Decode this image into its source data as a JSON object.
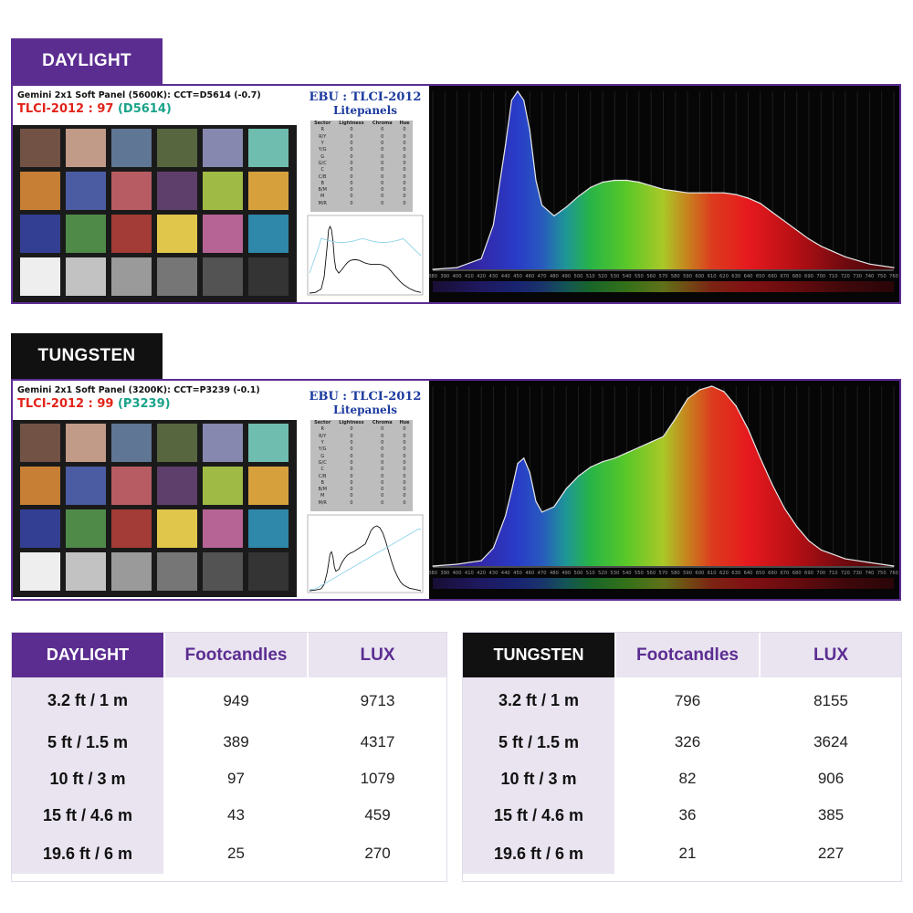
{
  "sections": [
    {
      "key": "daylight",
      "tab_label": "DAYLIGHT",
      "info_line1": "Gemini 2x1 Soft Panel (5600K): CCT=D5614 (-0.7)",
      "tlci_label": "TLCI-2012 : 97",
      "tlci_code": "(D5614)",
      "ebu_title": "EBU : TLCI-2012",
      "ebu_subtitle": "Litepanels",
      "ebu_header": [
        "Sector",
        "Lightness",
        "Chroma",
        "Hue"
      ],
      "ebu_rows": [
        [
          "R",
          "0",
          "0",
          "0"
        ],
        [
          "R/Y",
          "0",
          "0",
          "0"
        ],
        [
          "Y",
          "0",
          "0",
          "0"
        ],
        [
          "Y/G",
          "0",
          "0",
          "0"
        ],
        [
          "G",
          "0",
          "0",
          "0"
        ],
        [
          "G/C",
          "0",
          "0",
          "0"
        ],
        [
          "C",
          "0",
          "0",
          "0"
        ],
        [
          "C/B",
          "0",
          "0",
          "0"
        ],
        [
          "B",
          "0",
          "0",
          "0"
        ],
        [
          "B/M",
          "0",
          "0",
          "0"
        ],
        [
          "M",
          "0",
          "0",
          "0"
        ],
        [
          "M/R",
          "0",
          "0",
          "0"
        ]
      ],
      "colors": {
        "tab": "#5c2d91"
      }
    },
    {
      "key": "tungsten",
      "tab_label": "TUNGSTEN",
      "info_line1": "Gemini 2x1 Soft Panel (3200K): CCT=P3239 (-0.1)",
      "tlci_label": "TLCI-2012 : 99",
      "tlci_code": "(P3239)",
      "ebu_title": "EBU : TLCI-2012",
      "ebu_subtitle": "Litepanels",
      "ebu_header": [
        "Sector",
        "Lightness",
        "Chroma",
        "Hue"
      ],
      "ebu_rows": [
        [
          "R",
          "0",
          "0",
          "0"
        ],
        [
          "R/Y",
          "0",
          "0",
          "0"
        ],
        [
          "Y",
          "0",
          "0",
          "0"
        ],
        [
          "Y/G",
          "0",
          "0",
          "0"
        ],
        [
          "G",
          "0",
          "0",
          "0"
        ],
        [
          "G/C",
          "0",
          "0",
          "0"
        ],
        [
          "C",
          "0",
          "0",
          "0"
        ],
        [
          "C/B",
          "0",
          "0",
          "0"
        ],
        [
          "B",
          "0",
          "0",
          "0"
        ],
        [
          "B/M",
          "0",
          "0",
          "0"
        ],
        [
          "M",
          "0",
          "0",
          "0"
        ],
        [
          "M/R",
          "0",
          "0",
          "0"
        ]
      ],
      "colors": {
        "tab": "#111111"
      }
    }
  ],
  "checker_colors": [
    [
      "#735246",
      "#c29a88",
      "#5f7695",
      "#57663f",
      "#8688b0",
      "#6fbdaf"
    ],
    [
      "#c77f35",
      "#4c5ca3",
      "#b75c63",
      "#5e3f6b",
      "#9fba45",
      "#d6a13d"
    ],
    [
      "#323f93",
      "#4f8a49",
      "#a33b36",
      "#e0c64a",
      "#b56495",
      "#2f87aa"
    ],
    [
      "#eeeeee",
      "#c2c2c2",
      "#9a9a9a",
      "#767676",
      "#535353",
      "#343434"
    ]
  ],
  "chart_data": [
    {
      "type": "area",
      "panel": "daylight",
      "x_unit": "nm",
      "xlim": [
        380,
        760
      ],
      "x_ticks": [
        380,
        390,
        400,
        410,
        420,
        430,
        440,
        450,
        460,
        470,
        480,
        490,
        500,
        510,
        520,
        530,
        540,
        550,
        560,
        570,
        580,
        590,
        600,
        610,
        620,
        630,
        640,
        650,
        660,
        670,
        680,
        690,
        700,
        710,
        720,
        730,
        740,
        750,
        760
      ],
      "x": [
        380,
        400,
        420,
        430,
        440,
        445,
        450,
        455,
        460,
        465,
        470,
        480,
        490,
        500,
        510,
        520,
        530,
        540,
        550,
        560,
        570,
        580,
        590,
        600,
        610,
        620,
        630,
        640,
        650,
        660,
        670,
        680,
        690,
        700,
        720,
        740,
        760
      ],
      "y": [
        0.0,
        0.01,
        0.06,
        0.25,
        0.7,
        0.95,
        1.0,
        0.95,
        0.78,
        0.5,
        0.36,
        0.3,
        0.35,
        0.41,
        0.46,
        0.49,
        0.5,
        0.5,
        0.49,
        0.47,
        0.45,
        0.44,
        0.43,
        0.43,
        0.43,
        0.43,
        0.42,
        0.4,
        0.37,
        0.32,
        0.27,
        0.22,
        0.17,
        0.13,
        0.07,
        0.03,
        0.01
      ],
      "ylim": [
        0,
        1
      ]
    },
    {
      "type": "area",
      "panel": "tungsten",
      "x_unit": "nm",
      "xlim": [
        380,
        760
      ],
      "x_ticks": [
        380,
        390,
        400,
        410,
        420,
        430,
        440,
        450,
        460,
        470,
        480,
        490,
        500,
        510,
        520,
        530,
        540,
        550,
        560,
        570,
        580,
        590,
        600,
        610,
        620,
        630,
        640,
        650,
        660,
        670,
        680,
        690,
        700,
        710,
        720,
        730,
        740,
        750,
        760
      ],
      "x": [
        380,
        400,
        420,
        430,
        440,
        445,
        450,
        455,
        460,
        465,
        470,
        480,
        490,
        500,
        510,
        520,
        530,
        540,
        550,
        560,
        570,
        580,
        590,
        600,
        610,
        620,
        630,
        640,
        650,
        660,
        670,
        680,
        690,
        700,
        720,
        740,
        760
      ],
      "y": [
        0.0,
        0.01,
        0.03,
        0.1,
        0.28,
        0.42,
        0.57,
        0.6,
        0.52,
        0.36,
        0.3,
        0.33,
        0.43,
        0.5,
        0.55,
        0.58,
        0.6,
        0.63,
        0.66,
        0.69,
        0.72,
        0.82,
        0.93,
        0.98,
        1.0,
        0.97,
        0.89,
        0.76,
        0.6,
        0.45,
        0.32,
        0.22,
        0.14,
        0.09,
        0.04,
        0.02,
        0.0
      ],
      "ylim": [
        0,
        1
      ]
    }
  ],
  "tables": [
    {
      "key": "daylight",
      "header_label": "DAYLIGHT",
      "columns": [
        "Footcandles",
        "LUX"
      ],
      "rows": [
        {
          "distance": "3.2 ft / 1 m",
          "footcandles": "949",
          "lux": "9713"
        },
        {
          "distance": "5 ft / 1.5 m",
          "footcandles": "389",
          "lux": "4317"
        },
        {
          "distance": "10 ft / 3 m",
          "footcandles": "97",
          "lux": "1079"
        },
        {
          "distance": "15 ft / 4.6 m",
          "footcandles": "43",
          "lux": "459"
        },
        {
          "distance": "19.6 ft / 6 m",
          "footcandles": "25",
          "lux": "270"
        }
      ]
    },
    {
      "key": "tungsten",
      "header_label": "TUNGSTEN",
      "columns": [
        "Footcandles",
        "LUX"
      ],
      "rows": [
        {
          "distance": "3.2 ft / 1 m",
          "footcandles": "796",
          "lux": "8155"
        },
        {
          "distance": "5 ft / 1.5 m",
          "footcandles": "326",
          "lux": "3624"
        },
        {
          "distance": "10 ft / 3 m",
          "footcandles": "82",
          "lux": "906"
        },
        {
          "distance": "15 ft / 4.6 m",
          "footcandles": "36",
          "lux": "385"
        },
        {
          "distance": "19.6 ft / 6 m",
          "footcandles": "21",
          "lux": "227"
        }
      ]
    }
  ],
  "colors": {
    "brand_purple": "#5c2d91",
    "lavender": "#e9e4f0",
    "black_header": "#111111"
  }
}
